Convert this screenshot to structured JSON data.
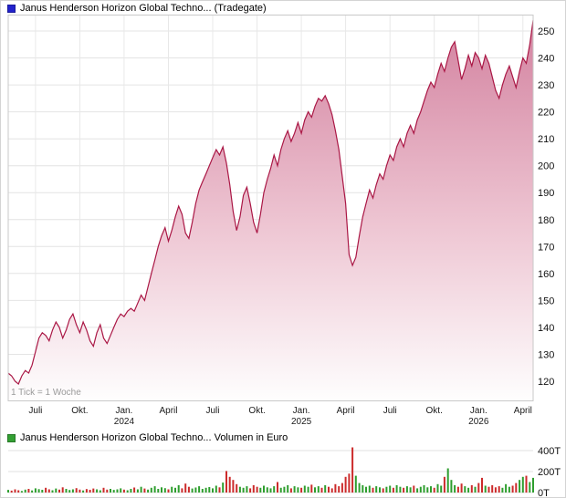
{
  "chart_data": [
    {
      "type": "area",
      "title": "Janus Henderson Horizon Global Techno... (Tradegate)",
      "note": "1 Tick = 1 Woche",
      "interval": "weekly",
      "marker_color": "#2222cc",
      "line_color": "#aa1745",
      "fill_top_color": "#d2809e",
      "fill_mid_color": "#eec6d3",
      "fill_bottom_color": "#fefefe",
      "grid_color": "#e4e4e4",
      "frame_color": "#c9c9c9",
      "y_ticks": [
        120,
        130,
        140,
        150,
        160,
        170,
        180,
        190,
        200,
        210,
        220,
        230,
        240,
        250
      ],
      "ylim": [
        113,
        256
      ],
      "x_ticks": [
        {
          "label": "Juli",
          "year": "",
          "i": 8
        },
        {
          "label": "Okt.",
          "year": "",
          "i": 21
        },
        {
          "label": "Jan.",
          "year": "2024",
          "i": 34
        },
        {
          "label": "April",
          "year": "",
          "i": 47
        },
        {
          "label": "Juli",
          "year": "",
          "i": 60
        },
        {
          "label": "Okt.",
          "year": "",
          "i": 73
        },
        {
          "label": "Jan.",
          "year": "2025",
          "i": 86
        },
        {
          "label": "April",
          "year": "",
          "i": 99
        },
        {
          "label": "Juli",
          "year": "",
          "i": 112
        },
        {
          "label": "Okt.",
          "year": "",
          "i": 125
        },
        {
          "label": "Jan.",
          "year": "2026",
          "i": 138
        },
        {
          "label": "April",
          "year": "",
          "i": 151
        }
      ],
      "values": [
        123,
        122,
        120,
        119,
        122,
        124,
        123,
        126,
        131,
        136,
        138,
        137,
        135,
        139,
        142,
        140,
        136,
        139,
        143,
        145,
        141,
        138,
        142,
        139,
        135,
        133,
        138,
        141,
        136,
        134,
        137,
        140,
        143,
        145,
        144,
        146,
        147,
        146,
        149,
        152,
        150,
        155,
        160,
        165,
        170,
        174,
        177,
        172,
        176,
        181,
        185,
        182,
        175,
        173,
        179,
        186,
        191,
        194,
        197,
        200,
        203,
        206,
        204,
        207,
        201,
        193,
        183,
        176,
        181,
        189,
        192,
        186,
        179,
        175,
        182,
        190,
        195,
        199,
        204,
        200,
        206,
        210,
        213,
        209,
        212,
        216,
        212,
        217,
        220,
        218,
        222,
        225,
        224,
        226,
        223,
        219,
        213,
        206,
        196,
        186,
        167,
        163,
        166,
        174,
        181,
        186,
        191,
        188,
        193,
        197,
        195,
        200,
        204,
        202,
        207,
        210,
        207,
        212,
        215,
        212,
        217,
        220,
        224,
        228,
        231,
        229,
        234,
        238,
        235,
        240,
        244,
        246,
        239,
        232,
        236,
        241,
        237,
        242,
        240,
        236,
        241,
        238,
        233,
        228,
        225,
        230,
        234,
        237,
        233,
        229,
        235,
        240,
        238,
        245,
        254
      ]
    },
    {
      "type": "bar",
      "title": "Janus Henderson Horizon Global Techno... Volumen in Euro",
      "unit": "T",
      "marker_color": "#33a033",
      "up_color": "#2e9e2e",
      "down_color": "#cc2b2b",
      "grid_color": "#e0e0e0",
      "y_ticks": [
        0,
        200,
        400
      ],
      "y_tick_labels": [
        "0T",
        "200T",
        "400T"
      ],
      "values": [
        25,
        18,
        30,
        22,
        15,
        28,
        35,
        20,
        40,
        32,
        26,
        45,
        30,
        22,
        38,
        28,
        50,
        35,
        24,
        30,
        42,
        28,
        20,
        33,
        26,
        38,
        30,
        22,
        45,
        28,
        35,
        25,
        30,
        40,
        28,
        22,
        35,
        48,
        30,
        55,
        38,
        28,
        45,
        60,
        35,
        50,
        42,
        30,
        55,
        45,
        70,
        40,
        85,
        55,
        38,
        48,
        60,
        35,
        45,
        52,
        40,
        65,
        50,
        95,
        205,
        150,
        120,
        80,
        55,
        45,
        60,
        40,
        70,
        55,
        45,
        65,
        50,
        40,
        60,
        100,
        45,
        55,
        70,
        40,
        60,
        50,
        45,
        65,
        55,
        75,
        50,
        60,
        45,
        70,
        55,
        40,
        80,
        60,
        90,
        150,
        180,
        430,
        160,
        90,
        70,
        55,
        65,
        45,
        60,
        50,
        40,
        55,
        65,
        45,
        70,
        55,
        45,
        60,
        50,
        65,
        40,
        55,
        70,
        50,
        60,
        45,
        80,
        65,
        150,
        230,
        120,
        70,
        55,
        85,
        60,
        45,
        70,
        55,
        90,
        140,
        65,
        55,
        70,
        50,
        60,
        45,
        80,
        55,
        65,
        90,
        120,
        150,
        160,
        100,
        140
      ]
    }
  ]
}
